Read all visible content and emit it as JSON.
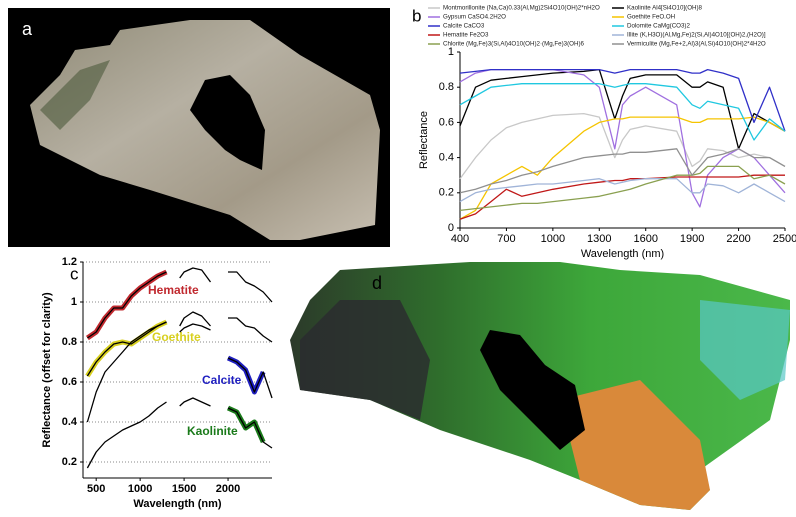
{
  "panel_labels": [
    "a",
    "b",
    "c",
    "d"
  ],
  "chart_data": [
    {
      "type": "line",
      "x": [
        400,
        500,
        600,
        700,
        800,
        900,
        1000,
        1200,
        1300,
        1400,
        1450,
        1500,
        1600,
        1800,
        1900,
        1950,
        2000,
        2100,
        2200,
        2300,
        2400,
        2500
      ],
      "xlabel": "Wavelength (nm)",
      "ylabel": "Reflectance",
      "xlim": [
        400,
        2500
      ],
      "xticks": [
        400,
        700,
        1000,
        1300,
        1600,
        1900,
        2200,
        2500
      ],
      "ylim": [
        0,
        1
      ],
      "yticks": [
        0,
        0.2,
        0.4,
        0.6,
        0.8,
        1
      ],
      "grid": false,
      "legend": "above",
      "series": [
        {
          "name": "Montmorillonite (Na,Ca)0.33(Al,Mg)2Si4O10(OH)2*nH2O",
          "color": "#c8c8c8",
          "values": [
            0.28,
            0.4,
            0.5,
            0.57,
            0.6,
            0.62,
            0.64,
            0.65,
            0.63,
            0.4,
            0.5,
            0.56,
            0.58,
            0.55,
            0.35,
            0.38,
            0.45,
            0.44,
            0.4,
            0.42,
            0.4,
            0.35
          ]
        },
        {
          "name": "Kaolinite Al4[Si4O10](OH)8",
          "color": "#000000",
          "values": [
            0.58,
            0.8,
            0.84,
            0.85,
            0.86,
            0.87,
            0.88,
            0.89,
            0.9,
            0.62,
            0.75,
            0.85,
            0.87,
            0.87,
            0.8,
            0.8,
            0.83,
            0.8,
            0.45,
            0.65,
            0.6,
            0.55
          ]
        },
        {
          "name": "Gypsum  CaSO4.2H2O",
          "color": "#a070e0",
          "values": [
            0.83,
            0.88,
            0.9,
            0.9,
            0.9,
            0.9,
            0.9,
            0.87,
            0.8,
            0.45,
            0.7,
            0.75,
            0.8,
            0.7,
            0.2,
            0.12,
            0.3,
            0.4,
            0.45,
            0.4,
            0.3,
            0.2
          ]
        },
        {
          "name": "Goethite FeO.OH",
          "color": "#f5c400",
          "values": [
            0.05,
            0.1,
            0.25,
            0.3,
            0.35,
            0.3,
            0.4,
            0.55,
            0.6,
            0.62,
            0.62,
            0.63,
            0.63,
            0.63,
            0.6,
            0.6,
            0.62,
            0.62,
            0.62,
            0.63,
            0.6,
            0.55
          ]
        },
        {
          "name": "Calcite CaCO3",
          "color": "#3030c8",
          "values": [
            0.88,
            0.89,
            0.9,
            0.9,
            0.9,
            0.9,
            0.9,
            0.9,
            0.9,
            0.88,
            0.89,
            0.9,
            0.9,
            0.9,
            0.88,
            0.88,
            0.9,
            0.88,
            0.85,
            0.6,
            0.8,
            0.55
          ]
        },
        {
          "name": "Dolomite CaMg(CO3)2",
          "color": "#20c8e0",
          "values": [
            0.7,
            0.75,
            0.8,
            0.81,
            0.82,
            0.82,
            0.82,
            0.82,
            0.82,
            0.8,
            0.81,
            0.82,
            0.82,
            0.8,
            0.7,
            0.68,
            0.72,
            0.7,
            0.68,
            0.5,
            0.62,
            0.55
          ]
        },
        {
          "name": "Hematite Fe2O3",
          "color": "#c01818",
          "values": [
            0.05,
            0.08,
            0.15,
            0.22,
            0.18,
            0.2,
            0.22,
            0.25,
            0.26,
            0.27,
            0.27,
            0.28,
            0.28,
            0.29,
            0.29,
            0.29,
            0.29,
            0.29,
            0.29,
            0.3,
            0.3,
            0.3
          ]
        },
        {
          "name": "Illite (K,H3O)(Al,Mg,Fe)2(Si,Al)4O10[(OH)2,(H2O)]",
          "color": "#a0b4d8",
          "values": [
            0.15,
            0.2,
            0.22,
            0.23,
            0.24,
            0.25,
            0.25,
            0.27,
            0.28,
            0.25,
            0.26,
            0.27,
            0.28,
            0.28,
            0.2,
            0.2,
            0.25,
            0.24,
            0.2,
            0.25,
            0.2,
            0.15
          ]
        },
        {
          "name": "Chlorite (Mg,Fe)3(Si,Al)4O10(OH)2·(Mg,Fe)3(OH)6",
          "color": "#8aa050",
          "values": [
            0.1,
            0.11,
            0.12,
            0.13,
            0.14,
            0.14,
            0.15,
            0.17,
            0.18,
            0.2,
            0.21,
            0.22,
            0.25,
            0.3,
            0.3,
            0.31,
            0.35,
            0.35,
            0.35,
            0.28,
            0.3,
            0.25
          ]
        },
        {
          "name": "Vermiculite (Mg,Fe+2,Al)3(Al,Si)4O10(OH)2*4H2O",
          "color": "#909090",
          "values": [
            0.2,
            0.22,
            0.25,
            0.27,
            0.3,
            0.32,
            0.35,
            0.4,
            0.41,
            0.42,
            0.42,
            0.43,
            0.43,
            0.45,
            0.3,
            0.35,
            0.4,
            0.42,
            0.45,
            0.4,
            0.4,
            0.35
          ]
        }
      ]
    },
    {
      "type": "line",
      "x": [
        400,
        500,
        600,
        700,
        800,
        900,
        1000,
        1100,
        1200,
        1300,
        1400,
        1450,
        1500,
        1600,
        1700,
        1800,
        1900,
        2000,
        2100,
        2200,
        2300,
        2400,
        2500
      ],
      "xlabel": "Wavelength (nm)",
      "ylabel": "Reflectance (offset for clarity)",
      "xlim": [
        350,
        2500
      ],
      "xticks": [
        500,
        1000,
        1500,
        2000
      ],
      "ylim": [
        0.12,
        1.2
      ],
      "yticks": [
        0.2,
        0.4,
        0.6,
        0.8,
        1,
        1.2
      ],
      "grid": true,
      "inline_labels": true,
      "series": [
        {
          "name": "Hematite",
          "color": "#000000",
          "highlight": {
            "color": "#c0282e",
            "xlim": [
              400,
              1300
            ]
          },
          "values": [
            0.82,
            0.85,
            0.92,
            0.97,
            0.97,
            1.03,
            1.07,
            1.1,
            1.13,
            1.15,
            null,
            1.12,
            1.15,
            1.17,
            1.16,
            1.1,
            null,
            1.15,
            1.15,
            1.1,
            1.08,
            1.05,
            1.0
          ]
        },
        {
          "name": "Goethite",
          "color": "#000000",
          "highlight": {
            "color": "#d8d020",
            "xlim": [
              400,
              1300
            ]
          },
          "values": [
            0.63,
            0.7,
            0.75,
            0.79,
            0.8,
            0.79,
            0.82,
            0.85,
            0.88,
            0.9,
            null,
            0.88,
            0.92,
            0.95,
            0.93,
            0.88,
            null,
            0.92,
            0.92,
            0.88,
            0.87,
            0.83,
            0.8
          ]
        },
        {
          "name": "Calcite",
          "color": "#000000",
          "highlight": {
            "color": "#1f1fc0",
            "xlim": [
              2000,
              2400
            ]
          },
          "values": [
            0.4,
            0.55,
            0.65,
            0.7,
            0.75,
            0.8,
            0.83,
            0.86,
            0.88,
            0.9,
            null,
            0.85,
            0.87,
            0.89,
            0.88,
            0.86,
            null,
            0.72,
            0.7,
            0.66,
            0.55,
            0.65,
            0.52
          ]
        },
        {
          "name": "Kaolinite",
          "color": "#000000",
          "highlight": {
            "color": "#1a7a1a",
            "xlim": [
              2000,
              2400
            ]
          },
          "values": [
            0.17,
            0.25,
            0.3,
            0.33,
            0.36,
            0.38,
            0.4,
            0.43,
            0.47,
            0.5,
            null,
            0.48,
            0.5,
            0.52,
            0.5,
            0.48,
            null,
            0.47,
            0.45,
            0.37,
            0.4,
            0.3,
            0.27
          ]
        }
      ]
    }
  ]
}
